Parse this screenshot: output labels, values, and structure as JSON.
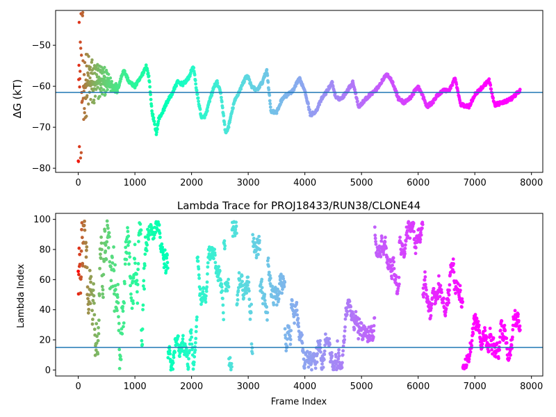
{
  "chart_data": [
    {
      "type": "scatter",
      "title": "",
      "xlabel": "",
      "ylabel": "ΔG (kT)",
      "xlim": [
        -400,
        8200
      ],
      "ylim": [
        -81,
        -41.5
      ],
      "xticks": [
        0,
        1000,
        2000,
        3000,
        4000,
        5000,
        6000,
        7000,
        8000
      ],
      "yticks": [
        -80,
        -70,
        -60,
        -50
      ],
      "grid": false,
      "hline": {
        "y": -61.5,
        "color": "#1f77b4"
      },
      "colormap": "rainbow (red at early frames → violet at late frames)",
      "n_frames": 7800,
      "trace_keypoints": [
        [
          100,
          -60
        ],
        [
          200,
          -59
        ],
        [
          300,
          -59.5
        ],
        [
          400,
          -58.5
        ],
        [
          500,
          -59
        ],
        [
          600,
          -60
        ],
        [
          700,
          -60.5
        ],
        [
          800,
          -56
        ],
        [
          900,
          -59
        ],
        [
          1000,
          -60
        ],
        [
          1100,
          -58
        ],
        [
          1200,
          -55
        ],
        [
          1250,
          -58
        ],
        [
          1300,
          -66
        ],
        [
          1380,
          -71.5
        ],
        [
          1420,
          -68
        ],
        [
          1500,
          -66
        ],
        [
          1560,
          -64
        ],
        [
          1650,
          -62
        ],
        [
          1750,
          -59
        ],
        [
          1850,
          -59.5
        ],
        [
          1950,
          -58
        ],
        [
          2030,
          -55
        ],
        [
          2100,
          -62
        ],
        [
          2180,
          -68
        ],
        [
          2250,
          -67
        ],
        [
          2330,
          -63
        ],
        [
          2400,
          -60
        ],
        [
          2450,
          -59
        ],
        [
          2520,
          -62
        ],
        [
          2600,
          -71.5
        ],
        [
          2650,
          -70
        ],
        [
          2750,
          -64
        ],
        [
          2850,
          -61
        ],
        [
          2950,
          -58
        ],
        [
          3000,
          -57.5
        ],
        [
          3050,
          -60
        ],
        [
          3150,
          -61
        ],
        [
          3250,
          -59
        ],
        [
          3330,
          -56
        ],
        [
          3400,
          -66
        ],
        [
          3500,
          -66.5
        ],
        [
          3600,
          -63
        ],
        [
          3700,
          -62
        ],
        [
          3800,
          -61
        ],
        [
          3900,
          -58
        ],
        [
          4000,
          -61
        ],
        [
          4100,
          -67
        ],
        [
          4200,
          -66
        ],
        [
          4300,
          -63
        ],
        [
          4400,
          -61
        ],
        [
          4480,
          -59
        ],
        [
          4550,
          -63
        ],
        [
          4650,
          -63
        ],
        [
          4750,
          -61
        ],
        [
          4850,
          -59
        ],
        [
          4950,
          -65
        ],
        [
          5050,
          -63.5
        ],
        [
          5150,
          -62
        ],
        [
          5250,
          -61
        ],
        [
          5350,
          -59
        ],
        [
          5450,
          -57
        ],
        [
          5550,
          -59
        ],
        [
          5650,
          -63
        ],
        [
          5750,
          -64
        ],
        [
          5850,
          -63
        ],
        [
          5950,
          -61
        ],
        [
          6000,
          -60
        ],
        [
          6100,
          -63
        ],
        [
          6150,
          -65
        ],
        [
          6250,
          -64
        ],
        [
          6350,
          -62
        ],
        [
          6450,
          -61
        ],
        [
          6550,
          -61
        ],
        [
          6650,
          -58
        ],
        [
          6750,
          -64.5
        ],
        [
          6900,
          -65
        ],
        [
          7000,
          -62
        ],
        [
          7150,
          -60
        ],
        [
          7250,
          -58.5
        ],
        [
          7350,
          -64.5
        ],
        [
          7500,
          -64
        ],
        [
          7650,
          -63
        ],
        [
          7800,
          -61
        ]
      ],
      "early_scatter_range": [
        -79.5,
        -42
      ]
    },
    {
      "type": "scatter",
      "title": "Lambda Trace for PROJ18433/RUN38/CLONE44",
      "xlabel": "Frame Index",
      "ylabel": "Lambda Index",
      "xlim": [
        -400,
        8200
      ],
      "ylim": [
        -4,
        104
      ],
      "xticks": [
        0,
        1000,
        2000,
        3000,
        4000,
        5000,
        6000,
        7000,
        8000
      ],
      "yticks": [
        0,
        20,
        40,
        60,
        80,
        100
      ],
      "grid": false,
      "hline": {
        "y": 15,
        "color": "#1f77b4"
      },
      "colormap": "rainbow (red at early frames → violet at late frames)",
      "n_frames": 7800,
      "lambda_range": [
        0,
        99
      ],
      "sampling_note_free": true
    }
  ]
}
